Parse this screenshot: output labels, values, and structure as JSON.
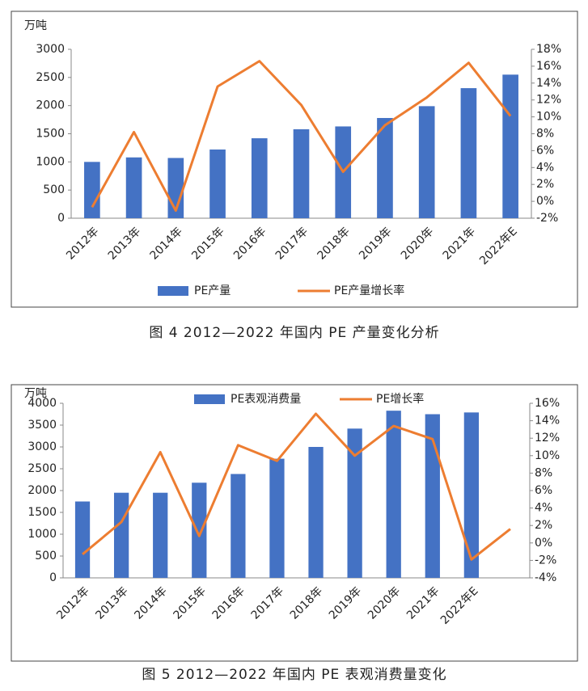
{
  "chart_data": [
    {
      "type": "bar_line",
      "y_label": "万吨",
      "caption": "图 4  2012—2022 年国内 PE 产量变化分析",
      "legend": "bottom",
      "categories": [
        "2012年",
        "2013年",
        "2014年",
        "2015年",
        "2016年",
        "2017年",
        "2018年",
        "2019年",
        "2020年",
        "2021年",
        "2022年E"
      ],
      "series": [
        {
          "name": "PE产量",
          "color": "#4472c4",
          "kind": "bar",
          "values": [
            1000,
            1080,
            1070,
            1220,
            1420,
            1580,
            1630,
            1780,
            1990,
            2310,
            2550
          ]
        },
        {
          "name": "PE产量增长率",
          "color": "#ed7d31",
          "kind": "line",
          "axis": "y2",
          "values": [
            -0.7,
            8.2,
            -1.1,
            13.6,
            16.6,
            11.4,
            3.5,
            9.0,
            12.3,
            16.4,
            10.1
          ]
        }
      ],
      "ylim": [
        0,
        3000
      ],
      "yticks": [
        0,
        500,
        1000,
        1500,
        2000,
        2500,
        3000
      ],
      "y2lim": [
        -2,
        18
      ],
      "y2ticks": [
        {
          "value": -2,
          "label": "-2%"
        },
        {
          "value": 0,
          "label": "0%"
        },
        {
          "value": 2,
          "label": "2%"
        },
        {
          "value": 4,
          "label": "4%"
        },
        {
          "value": 6,
          "label": "6%"
        },
        {
          "value": 8,
          "label": "8%"
        },
        {
          "value": 10,
          "label": "10%"
        },
        {
          "value": 12,
          "label": "12%"
        },
        {
          "value": 14,
          "label": "14%"
        },
        {
          "value": 16,
          "label": "16%"
        },
        {
          "value": 18,
          "label": "18%"
        }
      ]
    },
    {
      "type": "bar_line",
      "y_label": "万吨",
      "caption": "图 5  2012—2022 年国内 PE 表观消费量变化",
      "legend": "top",
      "categories": [
        "2012年",
        "2013年",
        "2014年",
        "2015年",
        "2016年",
        "2017年",
        "2018年",
        "2019年",
        "2020年",
        "2021年",
        "2022年E",
        null
      ],
      "series": [
        {
          "name": "PE表观消费量",
          "color": "#4472c4",
          "kind": "bar",
          "values": [
            1750,
            1950,
            1950,
            2180,
            2380,
            2730,
            3000,
            3420,
            3830,
            3750,
            3790,
            null
          ]
        },
        {
          "name": "PE增长率",
          "color": "#ed7d31",
          "kind": "line",
          "axis": "y2",
          "values": [
            -1.3,
            2.4,
            10.4,
            0.8,
            11.2,
            9.4,
            14.8,
            10.0,
            13.4,
            11.9,
            -1.9,
            1.6
          ]
        }
      ],
      "ylim": [
        0,
        4000
      ],
      "yticks": [
        0,
        500,
        1000,
        1500,
        2000,
        2500,
        3000,
        3500,
        4000
      ],
      "y2lim": [
        -4,
        16
      ],
      "y2ticks": [
        {
          "value": -4,
          "label": "-4%"
        },
        {
          "value": -2,
          "label": "-2%"
        },
        {
          "value": 0,
          "label": "0%"
        },
        {
          "value": 2,
          "label": "2%"
        },
        {
          "value": 4,
          "label": "4%"
        },
        {
          "value": 6,
          "label": "6%"
        },
        {
          "value": 8,
          "label": "8%"
        },
        {
          "value": 10,
          "label": "10%"
        },
        {
          "value": 12,
          "label": "12%"
        },
        {
          "value": 14,
          "label": "14%"
        },
        {
          "value": 16,
          "label": "16%"
        }
      ]
    }
  ]
}
